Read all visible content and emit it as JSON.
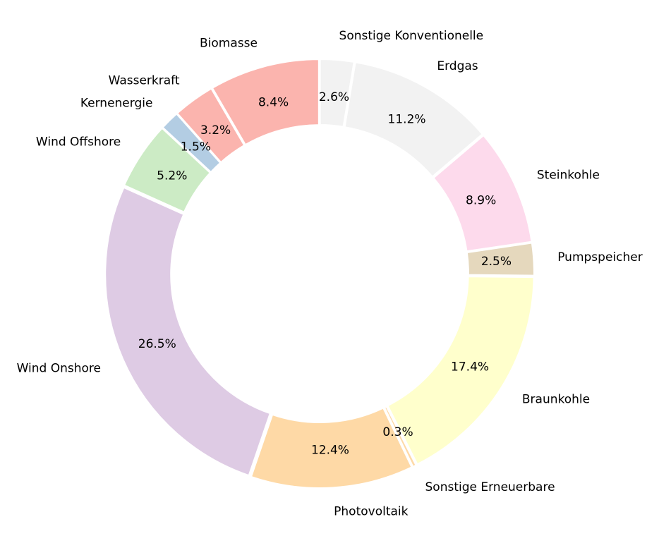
{
  "chart_data": {
    "type": "pie",
    "variant": "donut",
    "start_angle_deg": 90,
    "direction": "clockwise",
    "categories": [
      "Sonstige Konventionelle",
      "Erdgas",
      "Steinkohle",
      "Pumpspeicher",
      "Braunkohle",
      "Sonstige Erneuerbare",
      "Photovoltaik",
      "Wind Onshore",
      "Wind Offshore",
      "Kernenergie",
      "Wasserkraft",
      "Biomasse"
    ],
    "values": [
      2.6,
      11.2,
      8.9,
      2.5,
      17.4,
      0.3,
      12.4,
      26.5,
      5.2,
      1.5,
      3.2,
      8.4
    ],
    "labels": [
      "2.6%",
      "11.2%",
      "8.9%",
      "2.5%",
      "17.4%",
      "0.3%",
      "12.4%",
      "26.5%",
      "5.2%",
      "1.5%",
      "3.2%",
      "8.4%"
    ],
    "colors": [
      "#f2f2f2",
      "#f2f2f2",
      "#fddaec",
      "#e5d8bd",
      "#ffffcc",
      "#fed9a6",
      "#fed9a6",
      "#decbe4",
      "#ccebc5",
      "#b3cde3",
      "#fbb4ae",
      "#fbb4ae"
    ],
    "edge_color": "#ffffff",
    "legend": "none",
    "title": ""
  }
}
